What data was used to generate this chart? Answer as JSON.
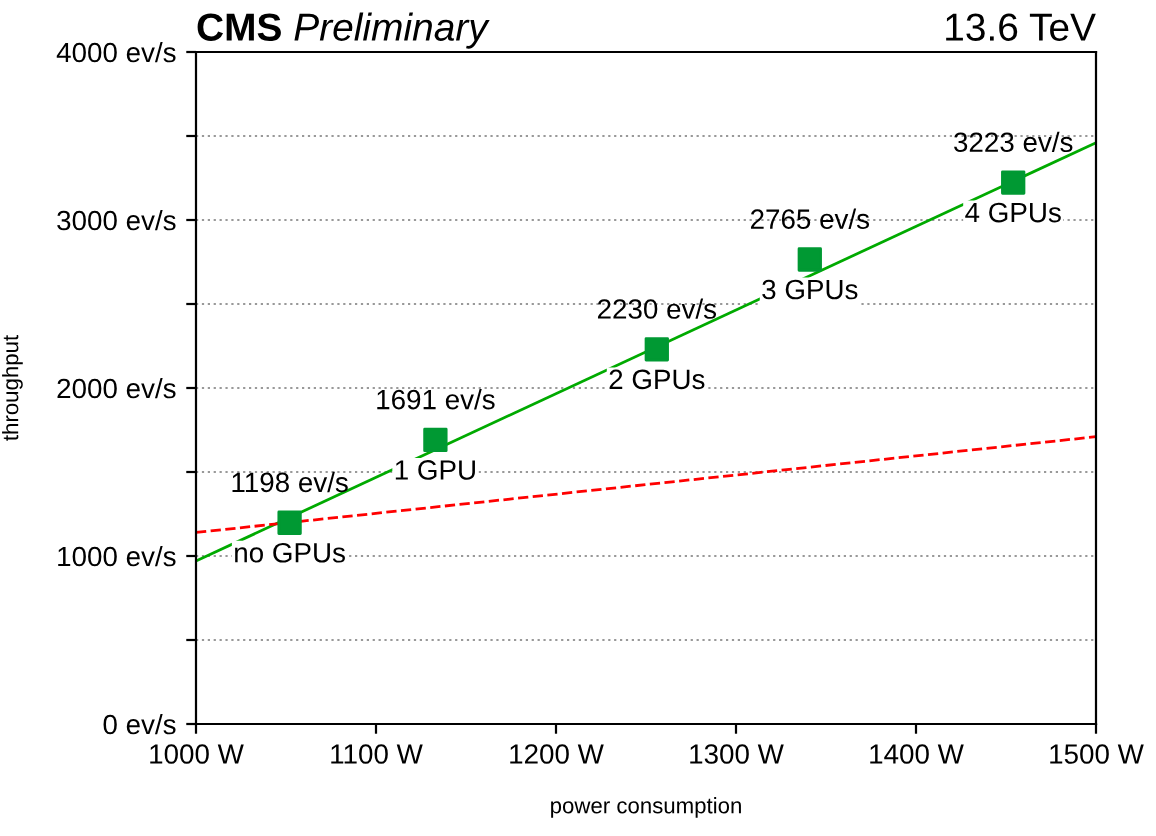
{
  "chart_data": {
    "type": "scatter",
    "title": "CMS",
    "subtitle": "Preliminary",
    "xlabel": "power consumption",
    "ylabel": "throughput",
    "xlim": [
      1000,
      1500
    ],
    "ylim": [
      0,
      4000
    ],
    "xticks": [
      {
        "value": 1000,
        "label": "1000 W"
      },
      {
        "value": 1100,
        "label": "1100 W"
      },
      {
        "value": 1200,
        "label": "1200 W"
      },
      {
        "value": 1300,
        "label": "1300 W"
      },
      {
        "value": 1400,
        "label": "1400 W"
      },
      {
        "value": 1500,
        "label": "1500 W"
      }
    ],
    "yticks": [
      {
        "value": 0,
        "label": "0 ev/s"
      },
      {
        "value": 500,
        "label": null
      },
      {
        "value": 1000,
        "label": "1000 ev/s"
      },
      {
        "value": 1500,
        "label": null
      },
      {
        "value": 2000,
        "label": "2000 ev/s"
      },
      {
        "value": 2500,
        "label": null
      },
      {
        "value": 3000,
        "label": "3000 ev/s"
      },
      {
        "value": 3500,
        "label": null
      },
      {
        "value": 4000,
        "label": "4000 ev/s"
      }
    ],
    "grid": "y",
    "legend": false,
    "series": [
      {
        "type": "line",
        "color": "#00aa00",
        "x": [
          1000,
          1500
        ],
        "values": [
          970,
          3460
        ],
        "line_style": "solid",
        "marker": "none"
      },
      {
        "type": "line",
        "color": "#ff0000",
        "x": [
          1000,
          1500
        ],
        "values": [
          1140,
          1710
        ],
        "line_style": "dashed",
        "marker": "none"
      },
      {
        "color": "#009933",
        "marker": "square",
        "x": [
          1052,
          1133,
          1256,
          1341,
          1454
        ],
        "values": [
          1198,
          1691,
          2230,
          2765,
          3223
        ],
        "value_labels": [
          "1198 ev/s",
          "1691 ev/s",
          "2230 ev/s",
          "2765 ev/s",
          "3223 ev/s"
        ]
      }
    ],
    "annotations": [
      "13.6 TeV",
      {
        "text": "no GPUs",
        "x": 1052,
        "y": 1198
      },
      {
        "text": "1 GPU",
        "x": 1133,
        "y": 1691
      },
      {
        "text": "2 GPUs",
        "x": 1256,
        "y": 2230
      },
      {
        "text": "3 GPUs",
        "x": 1341,
        "y": 2765
      },
      {
        "text": "4 GPUs",
        "x": 1454,
        "y": 3223
      }
    ]
  }
}
